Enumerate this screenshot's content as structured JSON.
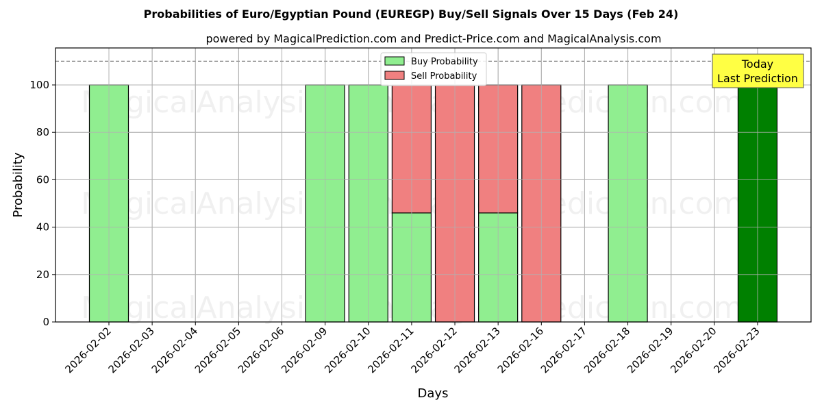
{
  "chart_data": {
    "type": "bar",
    "stacked": true,
    "title": "Probabilities of Euro/Egyptian Pound (EUREGP) Buy/Sell Signals Over 15 Days (Feb 24)",
    "subtitle": "powered by MagicalPrediction.com and Predict-Price.com and MagicalAnalysis.com",
    "xlabel": "Days",
    "ylabel": "Probability",
    "ylim": [
      0,
      115
    ],
    "yticks": [
      0,
      20,
      40,
      60,
      80,
      100
    ],
    "grid": true,
    "legend_position": "upper center",
    "categories": [
      "2026-02-02",
      "2026-02-03",
      "2026-02-04",
      "2026-02-05",
      "2026-02-06",
      "2026-02-09",
      "2026-02-10",
      "2026-02-11",
      "2026-02-12",
      "2026-02-13",
      "2026-02-16",
      "2026-02-17",
      "2026-02-18",
      "2026-02-19",
      "2026-02-20",
      "2026-02-23"
    ],
    "series": [
      {
        "name": "Buy Probability",
        "color": "#90ee90",
        "values": [
          100,
          0,
          0,
          0,
          0,
          100,
          100,
          46,
          0,
          46,
          0,
          0,
          100,
          0,
          0,
          100
        ]
      },
      {
        "name": "Sell Probability",
        "color": "#f08080",
        "values": [
          0,
          0,
          0,
          0,
          0,
          0,
          0,
          54,
          100,
          54,
          100,
          0,
          0,
          0,
          0,
          0
        ]
      }
    ],
    "highlight": {
      "category": "2026-02-23",
      "color": "#008000",
      "value": 100
    },
    "reference_line": {
      "y": 110,
      "style": "dashed",
      "color": "#808080"
    },
    "annotations": [
      {
        "text_line1": "Today",
        "text_line2": "Last Prediction",
        "background": "#ffff44",
        "x": "2026-02-23"
      }
    ],
    "watermarks": [
      "MagicalAnalysis.com",
      "MagicalPrediction.com"
    ]
  }
}
